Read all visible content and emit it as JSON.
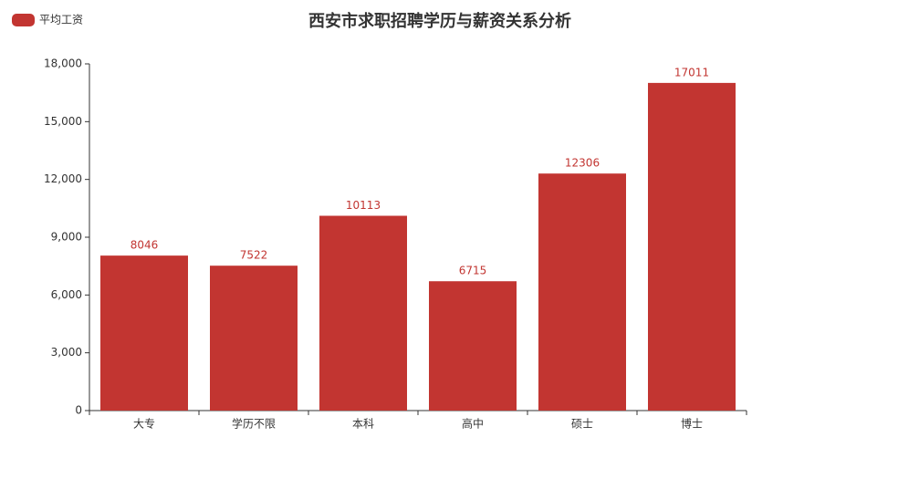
{
  "chart_data": {
    "type": "bar",
    "title": "西安市求职招聘学历与薪资关系分析",
    "legend": "平均工资",
    "categories": [
      "大专",
      "学历不限",
      "本科",
      "高中",
      "硕士",
      "博士"
    ],
    "series": [
      {
        "name": "平均工资",
        "color": "#c23531",
        "values": [
          8046,
          7522,
          10113,
          6715,
          12306,
          17011
        ]
      }
    ],
    "ylim": [
      0,
      18000
    ],
    "yticks": [
      0,
      {
        "value": 3000,
        "label": "3,000"
      },
      {
        "value": 6000,
        "label": "6,000"
      },
      {
        "value": 9000,
        "label": "9,000"
      },
      {
        "value": 12000,
        "label": "12,000"
      },
      {
        "value": 15000,
        "label": "15,000"
      },
      {
        "value": 18000,
        "label": "18,000"
      }
    ],
    "grid": false
  }
}
